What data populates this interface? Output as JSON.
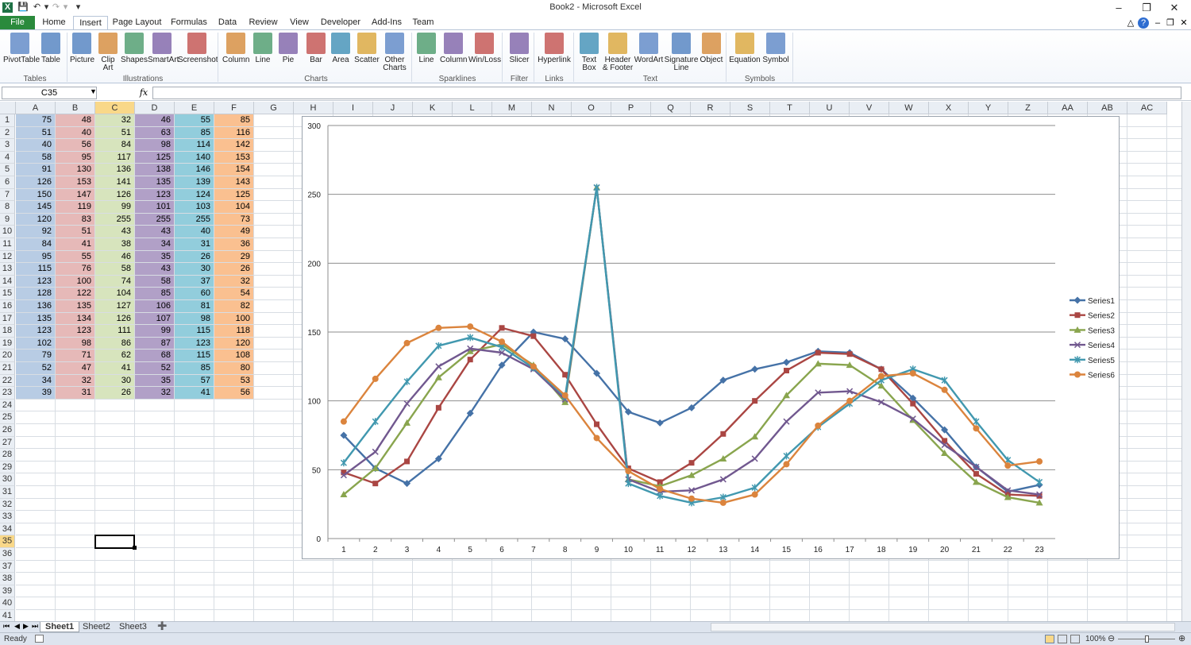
{
  "app": {
    "title": "Book2  -  Microsoft Excel"
  },
  "tabs": [
    "File",
    "Home",
    "Insert",
    "Page Layout",
    "Formulas",
    "Data",
    "Review",
    "View",
    "Developer",
    "Add-Ins",
    "Team"
  ],
  "active_tab": "Insert",
  "ribbon": {
    "groups": [
      {
        "label": "Tables",
        "buttons": [
          "PivotTable",
          "Table"
        ]
      },
      {
        "label": "Illustrations",
        "buttons": [
          "Picture",
          "Clip Art",
          "Shapes",
          "SmartArt",
          "Screenshot"
        ]
      },
      {
        "label": "Charts",
        "buttons": [
          "Column",
          "Line",
          "Pie",
          "Bar",
          "Area",
          "Scatter",
          "Other Charts"
        ]
      },
      {
        "label": "Sparklines",
        "buttons": [
          "Line",
          "Column",
          "Win/Loss"
        ]
      },
      {
        "label": "Filter",
        "buttons": [
          "Slicer"
        ]
      },
      {
        "label": "Links",
        "buttons": [
          "Hyperlink"
        ]
      },
      {
        "label": "Text",
        "buttons": [
          "Text Box",
          "Header & Footer",
          "WordArt",
          "Signature Line",
          "Object"
        ]
      },
      {
        "label": "Symbols",
        "buttons": [
          "Equation",
          "Symbol"
        ]
      }
    ]
  },
  "formula_bar": {
    "name_box": "C35",
    "fx": "fx",
    "formula": ""
  },
  "columns": [
    "A",
    "B",
    "C",
    "D",
    "E",
    "F",
    "G",
    "H",
    "I",
    "J",
    "K",
    "L",
    "M",
    "N",
    "O",
    "P",
    "Q",
    "R",
    "S",
    "T",
    "U",
    "V",
    "W",
    "X",
    "Y",
    "Z",
    "AA",
    "AB",
    "AC"
  ],
  "selected_column": "C",
  "selected_row": 35,
  "row_count": 41,
  "column_colors": [
    "#b8cce4",
    "#e6b9b8",
    "#d7e4bd",
    "#b1a0c7",
    "#92cddc",
    "#fac090"
  ],
  "sheet_data": [
    [
      75,
      48,
      32,
      46,
      55,
      85
    ],
    [
      51,
      40,
      51,
      63,
      85,
      116
    ],
    [
      40,
      56,
      84,
      98,
      114,
      142
    ],
    [
      58,
      95,
      117,
      125,
      140,
      153
    ],
    [
      91,
      130,
      136,
      138,
      146,
      154
    ],
    [
      126,
      153,
      141,
      135,
      139,
      143
    ],
    [
      150,
      147,
      126,
      123,
      124,
      125
    ],
    [
      145,
      119,
      99,
      101,
      103,
      104
    ],
    [
      120,
      83,
      255,
      255,
      255,
      73
    ],
    [
      92,
      51,
      43,
      43,
      40,
      49
    ],
    [
      84,
      41,
      38,
      34,
      31,
      36
    ],
    [
      95,
      55,
      46,
      35,
      26,
      29
    ],
    [
      115,
      76,
      58,
      43,
      30,
      26
    ],
    [
      123,
      100,
      74,
      58,
      37,
      32
    ],
    [
      128,
      122,
      104,
      85,
      60,
      54
    ],
    [
      136,
      135,
      127,
      106,
      81,
      82
    ],
    [
      135,
      134,
      126,
      107,
      98,
      100
    ],
    [
      123,
      123,
      111,
      99,
      115,
      118
    ],
    [
      102,
      98,
      86,
      87,
      123,
      120
    ],
    [
      79,
      71,
      62,
      68,
      115,
      108
    ],
    [
      52,
      47,
      41,
      52,
      85,
      80
    ],
    [
      34,
      32,
      30,
      35,
      57,
      53
    ],
    [
      39,
      31,
      26,
      32,
      41,
      56
    ]
  ],
  "chart_data": {
    "type": "line",
    "x": [
      1,
      2,
      3,
      4,
      5,
      6,
      7,
      8,
      9,
      10,
      11,
      12,
      13,
      14,
      15,
      16,
      17,
      18,
      19,
      20,
      21,
      22,
      23
    ],
    "ylim": [
      0,
      300
    ],
    "yticks": [
      0,
      50,
      100,
      150,
      200,
      250,
      300
    ],
    "grid": true,
    "legend": "right",
    "series": [
      {
        "name": "Series1",
        "color": "#4572a7",
        "marker": "diamond",
        "values": [
          75,
          51,
          40,
          58,
          91,
          126,
          150,
          145,
          120,
          92,
          84,
          95,
          115,
          123,
          128,
          136,
          135,
          123,
          102,
          79,
          52,
          34,
          39
        ]
      },
      {
        "name": "Series2",
        "color": "#aa4643",
        "marker": "square",
        "values": [
          48,
          40,
          56,
          95,
          130,
          153,
          147,
          119,
          83,
          51,
          41,
          55,
          76,
          100,
          122,
          135,
          134,
          123,
          98,
          71,
          47,
          32,
          31
        ]
      },
      {
        "name": "Series3",
        "color": "#89a54e",
        "marker": "triangle",
        "values": [
          32,
          51,
          84,
          117,
          136,
          141,
          126,
          99,
          255,
          43,
          38,
          46,
          58,
          74,
          104,
          127,
          126,
          111,
          86,
          62,
          41,
          30,
          26
        ]
      },
      {
        "name": "Series4",
        "color": "#71588f",
        "marker": "x",
        "values": [
          46,
          63,
          98,
          125,
          138,
          135,
          123,
          101,
          255,
          43,
          34,
          35,
          43,
          58,
          85,
          106,
          107,
          99,
          87,
          68,
          52,
          35,
          32
        ]
      },
      {
        "name": "Series5",
        "color": "#4198af",
        "marker": "star",
        "values": [
          55,
          85,
          114,
          140,
          146,
          139,
          124,
          103,
          255,
          40,
          31,
          26,
          30,
          37,
          60,
          81,
          98,
          115,
          123,
          115,
          85,
          57,
          41
        ]
      },
      {
        "name": "Series6",
        "color": "#db843d",
        "marker": "circle",
        "values": [
          85,
          116,
          142,
          153,
          154,
          143,
          125,
          104,
          73,
          49,
          36,
          29,
          26,
          32,
          54,
          82,
          100,
          118,
          120,
          108,
          80,
          53,
          56
        ]
      }
    ]
  },
  "sheets": [
    "Sheet1",
    "Sheet2",
    "Sheet3"
  ],
  "active_sheet": "Sheet1",
  "status": {
    "mode": "Ready",
    "zoom": "100%"
  }
}
